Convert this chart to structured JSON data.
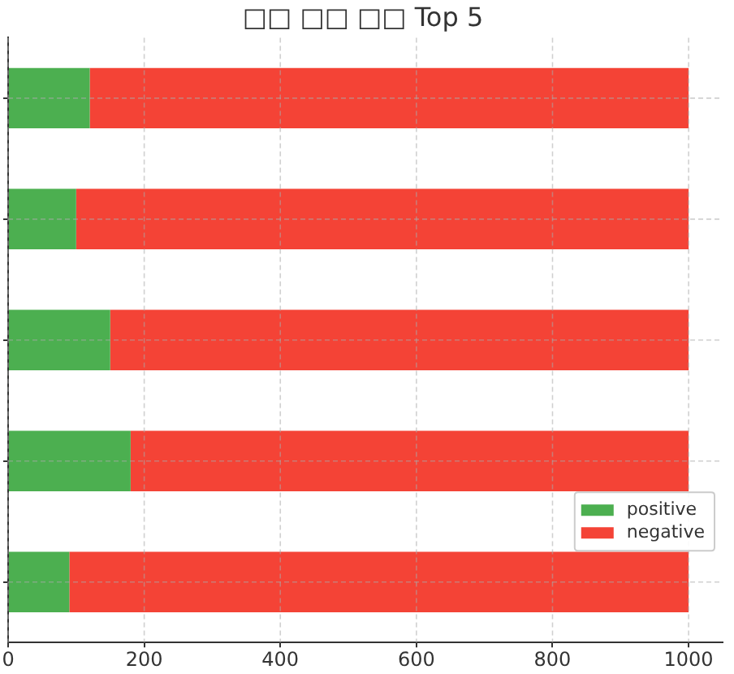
{
  "chart_data": {
    "type": "bar",
    "title": "□□ □□ □□ Top 5",
    "categories": [
      null,
      null,
      null,
      null,
      null
    ],
    "orientation": "horizontal",
    "stacked": true,
    "series": [
      {
        "name": "positive",
        "color": "#4caf50",
        "values": [
          120,
          100,
          150,
          180,
          90
        ]
      },
      {
        "name": "negative",
        "color": "#f44336",
        "values": [
          880,
          900,
          850,
          820,
          910
        ]
      }
    ],
    "xlim": [
      0,
      1050
    ],
    "xticks": [
      0,
      200,
      400,
      600,
      800,
      1000
    ],
    "grid": true,
    "legend": "bottom right",
    "tick_labels": "x"
  }
}
